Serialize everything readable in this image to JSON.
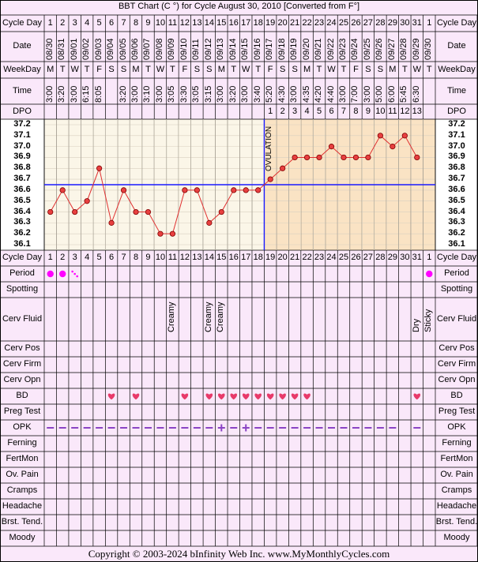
{
  "title": "BBT Chart (C °) for Cycle August 30, 2010  [Converted from F°]",
  "copyright": "Copyright © 2003-2024 bInfinity Web Inc.     www.MyMonthlyCycles.com",
  "row_labels": {
    "cycle_day": "Cycle Day",
    "date": "Date",
    "weekday": "WeekDay",
    "time": "Time",
    "dpo": "DPO",
    "period": "Period",
    "spotting": "Spotting",
    "cerv_fluid": "Cerv Fluid",
    "cerv_pos": "Cerv Pos",
    "cerv_firm": "Cerv Firm",
    "cerv_opn": "Cerv Opn",
    "bd": "BD",
    "preg_test": "Preg Test",
    "opk": "OPK",
    "ferning": "Ferning",
    "fertmon": "FertMon",
    "ov_pain": "Ov. Pain",
    "cramps": "Cramps",
    "headache": "Headache",
    "brst_tend": "Brst. Tend.",
    "moody": "Moody"
  },
  "ovulation_label": "OVULATION",
  "chart_data": {
    "type": "line",
    "cycle_days": [
      "1",
      "2",
      "3",
      "4",
      "5",
      "6",
      "7",
      "8",
      "9",
      "10",
      "11",
      "12",
      "13",
      "14",
      "15",
      "16",
      "17",
      "18",
      "19",
      "20",
      "21",
      "22",
      "23",
      "24",
      "25",
      "26",
      "27",
      "28",
      "29",
      "30",
      "31",
      "1"
    ],
    "dates": [
      "08/30",
      "08/31",
      "09/01",
      "09/02",
      "09/03",
      "09/04",
      "09/05",
      "09/06",
      "09/07",
      "09/08",
      "09/09",
      "09/10",
      "09/11",
      "09/12",
      "09/13",
      "09/14",
      "09/15",
      "09/16",
      "09/17",
      "09/18",
      "09/19",
      "09/20",
      "09/21",
      "09/22",
      "09/23",
      "09/24",
      "09/25",
      "09/26",
      "09/27",
      "09/28",
      "09/29",
      "09/30"
    ],
    "weekdays": [
      "M",
      "T",
      "W",
      "T",
      "F",
      "S",
      "S",
      "M",
      "T",
      "W",
      "T",
      "F",
      "S",
      "S",
      "M",
      "T",
      "W",
      "T",
      "F",
      "S",
      "S",
      "M",
      "T",
      "W",
      "T",
      "F",
      "S",
      "S",
      "M",
      "T",
      "W",
      "T"
    ],
    "times": [
      "3:00",
      "3:20",
      "3:00",
      "6:15",
      "8:05",
      "",
      "3:20",
      "3:00",
      "3:10",
      "3:00",
      "3:05",
      "3:30",
      "3:05",
      "3:15",
      "3:00",
      "3:20",
      "3:00",
      "3:40",
      "5:20",
      "4:30",
      "3:00",
      "4:35",
      "4:20",
      "4:40",
      "3:00",
      "7:00",
      "3:00",
      "5:00",
      "6:00",
      "5:45",
      "6:30",
      ""
    ],
    "dpo": [
      "",
      "",
      "",
      "",
      "",
      "",
      "",
      "",
      "",
      "",
      "",
      "",
      "",
      "",
      "",
      "",
      "",
      "",
      "1",
      "2",
      "3",
      "4",
      "5",
      "6",
      "7",
      "8",
      "9",
      "10",
      "11",
      "12",
      "13",
      ""
    ],
    "temperatures": [
      36.4,
      36.6,
      36.4,
      36.5,
      36.8,
      36.3,
      36.6,
      36.4,
      36.4,
      36.2,
      36.2,
      36.6,
      36.6,
      36.3,
      36.4,
      36.6,
      36.6,
      36.6,
      36.7,
      36.8,
      36.9,
      36.9,
      36.9,
      37.0,
      36.9,
      36.9,
      36.9,
      37.1,
      37.0,
      37.1,
      36.9,
      null
    ],
    "y_ticks": [
      "37.2",
      "37.1",
      "37.0",
      "36.9",
      "36.8",
      "36.7",
      "36.6",
      "36.5",
      "36.4",
      "36.3",
      "36.2",
      "36.1"
    ],
    "ylim": [
      36.1,
      37.2
    ],
    "coverline": 36.65,
    "ovulation_day_index": 17,
    "period": [
      "dot",
      "dot",
      "spot",
      "",
      "",
      "",
      "",
      "",
      "",
      "",
      "",
      "",
      "",
      "",
      "",
      "",
      "",
      "",
      "",
      "",
      "",
      "",
      "",
      "",
      "",
      "",
      "",
      "",
      "",
      "",
      "",
      "dot"
    ],
    "cerv_fluid": [
      "",
      "",
      "",
      "",
      "",
      "",
      "",
      "",
      "",
      "",
      "Creamy",
      "",
      "",
      "Creamy",
      "Creamy",
      "",
      "",
      "",
      "",
      "",
      "",
      "",
      "",
      "",
      "",
      "",
      "",
      "",
      "",
      "",
      "Dry",
      "Sticky"
    ],
    "bd": [
      false,
      false,
      false,
      false,
      false,
      true,
      false,
      true,
      false,
      false,
      false,
      true,
      false,
      true,
      true,
      true,
      true,
      true,
      true,
      true,
      true,
      true,
      false,
      false,
      false,
      false,
      false,
      false,
      false,
      false,
      true,
      false
    ],
    "opk": [
      "neg",
      "neg",
      "neg",
      "neg",
      "neg",
      "neg",
      "neg",
      "neg",
      "neg",
      "neg",
      "neg",
      "neg",
      "neg",
      "neg",
      "pos",
      "neg",
      "pos",
      "neg",
      "neg",
      "neg",
      "neg",
      "neg",
      "neg",
      "neg",
      "neg",
      "neg",
      "neg",
      "neg",
      "neg",
      "",
      "neg",
      ""
    ],
    "colors": {
      "line": "#e03030",
      "dot_fill": "#e84040",
      "coverline": "#1a1aff",
      "ovulation_line": "#1a1aff",
      "pre_ov_bg": "#fbf6e8",
      "post_ov_bg": "#fae3c4",
      "period": "#ff00ff",
      "heart": "#e83a6a",
      "opk": "#8a44c4"
    }
  }
}
